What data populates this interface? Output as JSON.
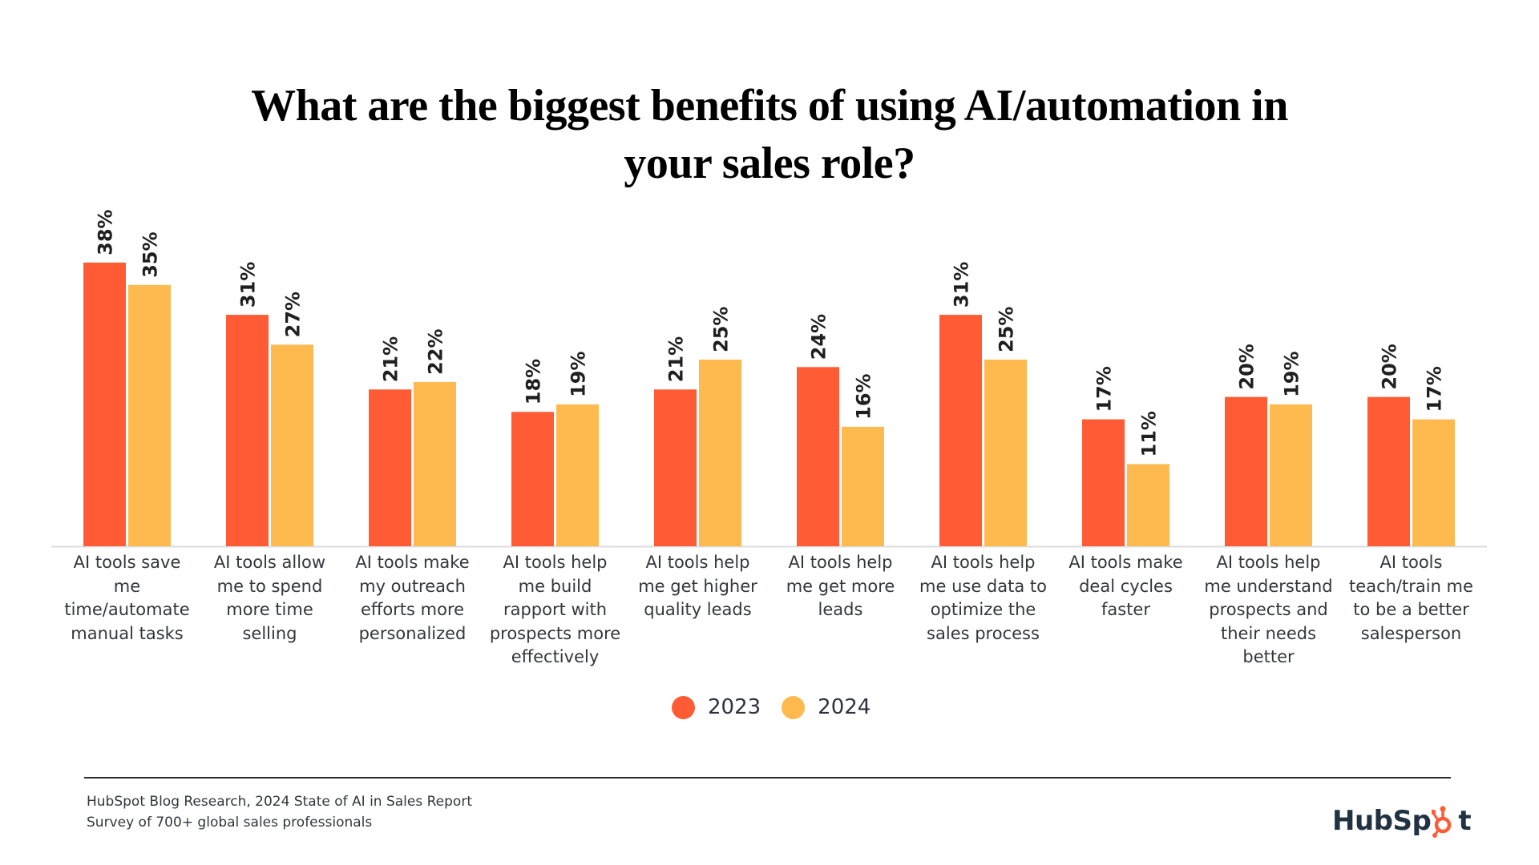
{
  "title": {
    "line1": "What are the biggest benefits of using AI/automation in",
    "line2": "your sales role?"
  },
  "chart_data": {
    "type": "bar",
    "title": "What are the biggest benefits of using AI/automation in your sales role?",
    "xlabel": "",
    "ylabel": "",
    "ylim": [
      0,
      40
    ],
    "grid": false,
    "legend_position": "bottom-center",
    "value_format": "percent",
    "categories": [
      "AI tools save me time/automate manual tasks",
      "AI tools allow me to spend more time selling",
      "AI tools make my outreach efforts more personalized",
      "AI tools help me build rapport with prospects more effectively",
      "AI tools help me get higher quality leads",
      "AI tools help me get more leads",
      "AI tools help me use data to optimize the sales process",
      "AI tools make deal cycles faster",
      "AI tools help me understand prospects and their needs better",
      "AI tools teach/train me to be a better salesperson"
    ],
    "category_label_lines": [
      [
        "AI tools save",
        "me",
        "time/automate",
        "manual tasks"
      ],
      [
        "AI tools allow",
        "me to spend",
        "more time",
        "selling"
      ],
      [
        "AI tools make",
        "my outreach",
        "efforts more",
        "personalized"
      ],
      [
        "AI tools help",
        "me build",
        "rapport with",
        "prospects more",
        "effectively"
      ],
      [
        "AI tools help",
        "me get higher",
        "quality leads"
      ],
      [
        "AI tools help",
        "me get more",
        "leads"
      ],
      [
        "AI tools help",
        "me use data to",
        "optimize the",
        "sales process"
      ],
      [
        "AI tools make",
        "deal cycles",
        "faster"
      ],
      [
        "AI tools help",
        "me understand",
        "prospects and",
        "their needs",
        "better"
      ],
      [
        "AI tools",
        "teach/train me",
        "to be a better",
        "salesperson"
      ]
    ],
    "series": [
      {
        "name": "2023",
        "color": "#FF5C35",
        "values": [
          38,
          31,
          21,
          18,
          21,
          24,
          31,
          17,
          20,
          20
        ]
      },
      {
        "name": "2024",
        "color": "#FFBA4F",
        "values": [
          35,
          27,
          22,
          19,
          25,
          16,
          25,
          11,
          19,
          17
        ]
      }
    ]
  },
  "legend": [
    {
      "label": "2023",
      "color": "#FF5C35"
    },
    {
      "label": "2024",
      "color": "#FFBA4F"
    }
  ],
  "footer": {
    "source": "HubSpot Blog Research, 2024 State of AI in Sales Report",
    "note": "Survey of 700+ global sales professionals"
  },
  "logo": {
    "text_before": "HubSp",
    "text_after": "t",
    "icon": "hubspot-sprocket-icon",
    "accent": "#FF5C35",
    "text_color": "#213343"
  }
}
